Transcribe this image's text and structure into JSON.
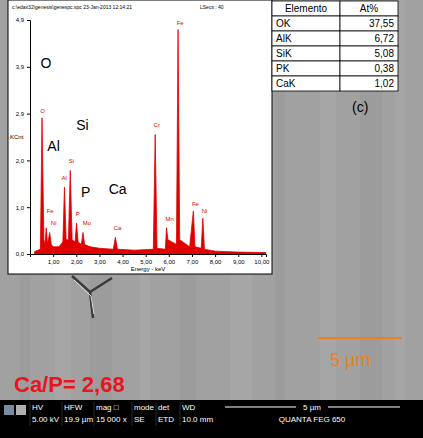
{
  "chart_data": {
    "type": "line",
    "header": "c:\\edax32\\genesis\\genespc.spc 23-Jan-2013 12:14:21",
    "header_right": "LSecs : 40",
    "y_label": "KCnt",
    "x_label": "Energy - keV",
    "color": "#e00000",
    "x": [
      0.2,
      0.45,
      0.52,
      0.6,
      0.65,
      0.7,
      0.76,
      0.85,
      0.92,
      1.0,
      1.25,
      1.42,
      1.49,
      1.56,
      1.66,
      1.74,
      1.82,
      1.95,
      2.01,
      2.08,
      2.22,
      2.29,
      2.36,
      2.6,
      3.0,
      3.6,
      3.69,
      3.78,
      4.5,
      5.33,
      5.41,
      5.49,
      5.85,
      5.9,
      5.96,
      6.33,
      6.4,
      6.47,
      6.9,
      7.06,
      7.13,
      7.4,
      7.47,
      7.54,
      8.0,
      9.0,
      10.2
    ],
    "values": [
      0.05,
      0.1,
      2.85,
      0.3,
      0.2,
      0.55,
      0.2,
      0.45,
      0.2,
      0.15,
      0.15,
      0.25,
      1.4,
      0.3,
      0.3,
      1.75,
      0.3,
      0.25,
      0.65,
      0.25,
      0.2,
      0.45,
      0.2,
      0.15,
      0.12,
      0.1,
      0.35,
      0.1,
      0.08,
      0.1,
      2.5,
      0.12,
      0.1,
      0.55,
      0.3,
      0.2,
      4.7,
      0.3,
      0.15,
      0.9,
      0.15,
      0.12,
      0.75,
      0.1,
      0.06,
      0.04,
      0.03
    ],
    "xlim": [
      0,
      10.2
    ],
    "xticks": [
      {
        "value": 1,
        "label": "1,00"
      },
      {
        "value": 2,
        "label": "2,00"
      },
      {
        "value": 3,
        "label": "3,00"
      },
      {
        "value": 4,
        "label": "4,00"
      },
      {
        "value": 5,
        "label": "5,00"
      },
      {
        "value": 6,
        "label": "6,00"
      },
      {
        "value": 7,
        "label": "7,00"
      },
      {
        "value": 8,
        "label": "8,00"
      },
      {
        "value": 9,
        "label": "9,00"
      },
      {
        "value": 10,
        "label": "10,00"
      }
    ],
    "ylim": [
      0,
      4.9
    ],
    "yticks": [
      {
        "value": 0,
        "label": "0,0"
      },
      {
        "value": 0.98,
        "label": "1,0"
      },
      {
        "value": 1.96,
        "label": "2,0"
      },
      {
        "value": 2.94,
        "label": "2,9"
      },
      {
        "value": 3.92,
        "label": "3,9"
      },
      {
        "value": 4.9,
        "label": "4,9"
      }
    ],
    "peak_labels": [
      {
        "text": "O",
        "x": 0.44,
        "y": 2.95
      },
      {
        "text": "Fe",
        "x": 0.72,
        "y": 0.85
      },
      {
        "text": "Ni",
        "x": 0.9,
        "y": 0.6
      },
      {
        "text": "Al",
        "x": 1.36,
        "y": 1.55
      },
      {
        "text": "Si",
        "x": 1.68,
        "y": 1.9
      },
      {
        "text": "P",
        "x": 1.98,
        "y": 0.8
      },
      {
        "text": "Mo",
        "x": 2.28,
        "y": 0.6
      },
      {
        "text": "Ca",
        "x": 3.62,
        "y": 0.5
      },
      {
        "text": "Cr",
        "x": 5.34,
        "y": 2.65
      },
      {
        "text": "Mn",
        "x": 5.86,
        "y": 0.7
      },
      {
        "text": "Fe",
        "x": 6.34,
        "y": 4.8
      },
      {
        "text": "Fe",
        "x": 7.0,
        "y": 1.0
      },
      {
        "text": "Ni",
        "x": 7.42,
        "y": 0.85
      }
    ],
    "annotations": [
      {
        "text": "O",
        "x": 0.45,
        "y": 3.9
      },
      {
        "text": "Si",
        "x": 2.0,
        "y": 2.6
      },
      {
        "text": "Al",
        "x": 0.75,
        "y": 2.15
      },
      {
        "text": "P",
        "x": 2.2,
        "y": 1.2
      },
      {
        "text": "Ca",
        "x": 3.4,
        "y": 1.25
      }
    ]
  },
  "table": {
    "header": [
      "Elemento",
      "At%"
    ],
    "rows": [
      [
        "OK",
        "37,55"
      ],
      [
        "AlK",
        "6,72"
      ],
      [
        "SiK",
        "5,08"
      ],
      [
        "PK",
        "0,38"
      ],
      [
        "CaK",
        "1,02"
      ]
    ]
  },
  "panel_label": "(c)",
  "ratio_label": "Ca/P= 2,68",
  "scale_bar": "5 µm",
  "info_bar": {
    "fields": [
      {
        "label": "HV",
        "value": "5.00 kV"
      },
      {
        "label": "HFW",
        "value": "19.9 µm"
      },
      {
        "label": "mag □",
        "value": "15 000 x"
      },
      {
        "label": "mode",
        "value": "SE"
      },
      {
        "label": "det",
        "value": "ETD"
      },
      {
        "label": "WD",
        "value": "10.0 mm"
      }
    ],
    "scale": "5 µm",
    "instrument": "QUANTA FEG 650"
  }
}
